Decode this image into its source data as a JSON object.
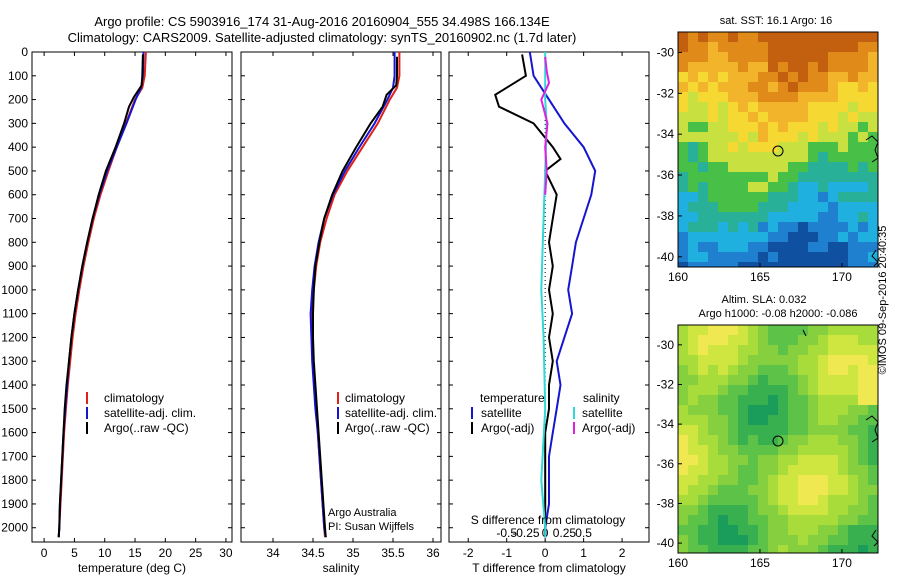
{
  "header": {
    "line1": "Argo profile: CS 5903916_174 31-Aug-2016 20160904_555 34.498S 166.134E",
    "line2": "Climatology: CARS2009. Satellite-adjusted climatology: synTS_20160902.nc (1.7d later)"
  },
  "colors": {
    "climatology": "#e0201a",
    "satellite": "#1515d0",
    "argo": "#000000",
    "sat_salinity": "#30d8d8",
    "argo_salinity": "#e020e0"
  },
  "labels": {
    "argo_australia": "Argo Australia",
    "pi": "PI: Susan Wijffels",
    "timestamp": "©IMOS 09-Sep-2016 20:40:35",
    "map_sst_title": "sat. SST: 16.1 Argo: 16",
    "map_sla_title1": "Altim. SLA: 0.032",
    "map_sla_title2": "Argo h1000: -0.08 h2000: -0.086"
  },
  "chart_data": [
    {
      "type": "line",
      "name": "temperature-profile",
      "xlabel": "temperature (deg C)",
      "ylabel": "",
      "xlim": [
        -2,
        31
      ],
      "ylim": [
        2060,
        0
      ],
      "xticks": [
        0,
        5,
        10,
        15,
        20,
        25,
        30
      ],
      "yticks": [
        0,
        100,
        200,
        300,
        400,
        500,
        600,
        700,
        800,
        900,
        1000,
        1100,
        1200,
        1300,
        1400,
        1500,
        1600,
        1700,
        1800,
        1900,
        2000
      ],
      "legend": [
        "climatology",
        "satellite-adj. clim.",
        "Argo(..raw -QC)"
      ],
      "legend_position": "lower-right",
      "series": [
        {
          "name": "climatology",
          "color_key": "climatology",
          "points": [
            [
              16.8,
              0
            ],
            [
              16.6,
              100
            ],
            [
              16.2,
              150
            ],
            [
              15.0,
              200
            ],
            [
              13.5,
              300
            ],
            [
              12.0,
              400
            ],
            [
              10.6,
              500
            ],
            [
              9.3,
              600
            ],
            [
              8.2,
              700
            ],
            [
              7.3,
              800
            ],
            [
              6.5,
              900
            ],
            [
              5.8,
              1000
            ],
            [
              5.2,
              1100
            ],
            [
              4.7,
              1200
            ],
            [
              4.3,
              1300
            ],
            [
              3.9,
              1400
            ],
            [
              3.6,
              1500
            ],
            [
              3.3,
              1600
            ],
            [
              3.1,
              1700
            ],
            [
              2.9,
              1800
            ],
            [
              2.7,
              1900
            ],
            [
              2.5,
              2000
            ],
            [
              2.4,
              2040
            ]
          ]
        },
        {
          "name": "satellite-adj. clim.",
          "color_key": "satellite",
          "points": [
            [
              16.4,
              0
            ],
            [
              16.3,
              100
            ],
            [
              16.0,
              150
            ],
            [
              15.1,
              200
            ],
            [
              13.6,
              300
            ],
            [
              12.0,
              400
            ],
            [
              10.4,
              500
            ],
            [
              9.1,
              600
            ],
            [
              8.0,
              700
            ],
            [
              7.1,
              800
            ],
            [
              6.3,
              900
            ],
            [
              5.6,
              1000
            ],
            [
              5.0,
              1100
            ],
            [
              4.5,
              1200
            ],
            [
              4.1,
              1300
            ],
            [
              3.8,
              1400
            ],
            [
              3.5,
              1500
            ],
            [
              3.2,
              1600
            ],
            [
              3.0,
              1700
            ],
            [
              2.8,
              1800
            ],
            [
              2.6,
              1900
            ],
            [
              2.5,
              2000
            ],
            [
              2.4,
              2040
            ]
          ]
        },
        {
          "name": "Argo(..raw -QC)",
          "color_key": "argo",
          "points": [
            [
              16.3,
              10
            ],
            [
              16.2,
              100
            ],
            [
              16.1,
              140
            ],
            [
              14.8,
              190
            ],
            [
              14.0,
              230
            ],
            [
              13.2,
              300
            ],
            [
              11.8,
              400
            ],
            [
              10.2,
              500
            ],
            [
              9.0,
              600
            ],
            [
              8.0,
              700
            ],
            [
              7.1,
              800
            ],
            [
              6.3,
              900
            ],
            [
              5.6,
              1000
            ],
            [
              5.0,
              1100
            ],
            [
              4.5,
              1200
            ],
            [
              4.1,
              1300
            ],
            [
              3.7,
              1400
            ],
            [
              3.4,
              1500
            ],
            [
              3.2,
              1600
            ],
            [
              3.0,
              1700
            ],
            [
              2.8,
              1800
            ],
            [
              2.6,
              1900
            ],
            [
              2.5,
              2000
            ],
            [
              2.4,
              2040
            ]
          ]
        }
      ]
    },
    {
      "type": "line",
      "name": "salinity-profile",
      "xlabel": "salinity",
      "ylabel": "",
      "xlim": [
        33.6,
        36.1
      ],
      "ylim": [
        2060,
        0
      ],
      "xticks": [
        34,
        34.5,
        35,
        35.5,
        36
      ],
      "legend": [
        "climatology",
        "satellite-adj. clim.",
        "Argo(..raw -QC)"
      ],
      "legend_position": "lower-right",
      "series": [
        {
          "name": "climatology",
          "color_key": "climatology",
          "points": [
            [
              35.58,
              0
            ],
            [
              35.58,
              100
            ],
            [
              35.55,
              150
            ],
            [
              35.46,
              200
            ],
            [
              35.31,
              300
            ],
            [
              35.12,
              400
            ],
            [
              34.93,
              500
            ],
            [
              34.77,
              600
            ],
            [
              34.67,
              700
            ],
            [
              34.59,
              800
            ],
            [
              34.54,
              900
            ],
            [
              34.51,
              1000
            ],
            [
              34.49,
              1100
            ],
            [
              34.49,
              1200
            ],
            [
              34.5,
              1300
            ],
            [
              34.52,
              1400
            ],
            [
              34.54,
              1500
            ],
            [
              34.56,
              1600
            ],
            [
              34.58,
              1700
            ],
            [
              34.6,
              1800
            ],
            [
              34.62,
              1900
            ],
            [
              34.64,
              2000
            ],
            [
              34.65,
              2040
            ]
          ]
        },
        {
          "name": "satellite-adj. clim.",
          "color_key": "satellite",
          "points": [
            [
              35.52,
              0
            ],
            [
              35.52,
              100
            ],
            [
              35.5,
              150
            ],
            [
              35.43,
              200
            ],
            [
              35.27,
              300
            ],
            [
              35.08,
              400
            ],
            [
              34.9,
              500
            ],
            [
              34.75,
              600
            ],
            [
              34.64,
              700
            ],
            [
              34.57,
              800
            ],
            [
              34.52,
              900
            ],
            [
              34.49,
              1000
            ],
            [
              34.47,
              1100
            ],
            [
              34.48,
              1200
            ],
            [
              34.49,
              1300
            ],
            [
              34.51,
              1400
            ],
            [
              34.53,
              1500
            ],
            [
              34.56,
              1600
            ],
            [
              34.58,
              1700
            ],
            [
              34.6,
              1800
            ],
            [
              34.62,
              1900
            ],
            [
              34.64,
              2000
            ],
            [
              34.66,
              2040
            ]
          ]
        },
        {
          "name": "Argo(..raw -QC)",
          "color_key": "argo",
          "points": [
            [
              35.55,
              20
            ],
            [
              35.55,
              100
            ],
            [
              35.54,
              140
            ],
            [
              35.42,
              180
            ],
            [
              35.37,
              230
            ],
            [
              35.22,
              300
            ],
            [
              35.04,
              400
            ],
            [
              34.87,
              500
            ],
            [
              34.74,
              600
            ],
            [
              34.64,
              700
            ],
            [
              34.58,
              800
            ],
            [
              34.53,
              900
            ],
            [
              34.51,
              1000
            ],
            [
              34.5,
              1100
            ],
            [
              34.5,
              1200
            ],
            [
              34.51,
              1300
            ],
            [
              34.53,
              1400
            ],
            [
              34.55,
              1500
            ],
            [
              34.57,
              1600
            ],
            [
              34.59,
              1700
            ],
            [
              34.61,
              1800
            ],
            [
              34.63,
              1900
            ],
            [
              34.65,
              2000
            ],
            [
              34.66,
              2040
            ]
          ]
        }
      ]
    },
    {
      "type": "line",
      "name": "difference-profile",
      "xlabel": "T difference from climatology",
      "xlabel_top": "S difference from climatology",
      "ylabel": "",
      "xlim": [
        -2.5,
        2.7
      ],
      "ylim": [
        2060,
        0
      ],
      "xticks": [
        -2,
        -1,
        0,
        1,
        2
      ],
      "xtick_labels": [
        "-2",
        "-1",
        "0",
        "1",
        "2"
      ],
      "s_ticks": [
        -0.5,
        -0.25,
        0,
        0.25,
        0.5
      ],
      "s_tick_labels": [
        "-0.5",
        "-0.25",
        "0",
        "0.25",
        "0.5"
      ],
      "legend_temperature_title": "temperature",
      "legend_salinity_title": "salinity",
      "legend_temperature": [
        "satellite",
        "Argo(-adj)"
      ],
      "legend_salinity": [
        "satellite",
        "Argo(-adj)"
      ],
      "series": [
        {
          "name": "temperature satellite",
          "color_key": "satellite",
          "points": [
            [
              -0.4,
              0
            ],
            [
              -0.3,
              100
            ],
            [
              -0.1,
              150
            ],
            [
              0.1,
              200
            ],
            [
              0.5,
              300
            ],
            [
              1.0,
              400
            ],
            [
              1.3,
              500
            ],
            [
              1.2,
              600
            ],
            [
              1.0,
              700
            ],
            [
              0.8,
              800
            ],
            [
              0.7,
              900
            ],
            [
              0.6,
              1000
            ],
            [
              0.7,
              1100
            ],
            [
              0.5,
              1200
            ],
            [
              0.3,
              1300
            ],
            [
              0.4,
              1400
            ],
            [
              0.3,
              1500
            ],
            [
              0.2,
              1600
            ],
            [
              0.1,
              1700
            ],
            [
              0.1,
              1800
            ],
            [
              0.1,
              1900
            ],
            [
              0.0,
              2000
            ],
            [
              0.0,
              2040
            ]
          ]
        },
        {
          "name": "temperature Argo(-adj)",
          "color_key": "argo",
          "points": [
            [
              -0.6,
              10
            ],
            [
              -0.5,
              100
            ],
            [
              -1.3,
              180
            ],
            [
              -1.2,
              230
            ],
            [
              -0.3,
              300
            ],
            [
              0.2,
              400
            ],
            [
              0.4,
              450
            ],
            [
              0.0,
              500
            ],
            [
              0.3,
              600
            ],
            [
              0.2,
              700
            ],
            [
              0.1,
              800
            ],
            [
              0.2,
              900
            ],
            [
              0.1,
              1000
            ],
            [
              0.2,
              1100
            ],
            [
              0.1,
              1200
            ],
            [
              0.2,
              1300
            ],
            [
              0.1,
              1400
            ],
            [
              0.1,
              1500
            ],
            [
              0.0,
              1600
            ],
            [
              0.0,
              1700
            ],
            [
              0.0,
              1800
            ],
            [
              0.0,
              1900
            ],
            [
              0.0,
              2000
            ],
            [
              0.0,
              2040
            ]
          ]
        },
        {
          "name": "salinity satellite",
          "color_key": "sat_salinity",
          "points": [
            [
              0.0,
              0
            ],
            [
              0.0,
              100
            ],
            [
              0.0,
              200
            ],
            [
              0.02,
              300
            ],
            [
              0.0,
              500
            ],
            [
              -0.03,
              800
            ],
            [
              -0.05,
              1000
            ],
            [
              -0.02,
              1200
            ],
            [
              0.0,
              1500
            ],
            [
              -0.05,
              1800
            ],
            [
              0.0,
              2000
            ],
            [
              0.0,
              2040
            ]
          ]
        },
        {
          "name": "salinity Argo(-adj)",
          "color_key": "argo_salinity",
          "points": [
            [
              0.0,
              20
            ],
            [
              0.02,
              80
            ],
            [
              0.05,
              130
            ],
            [
              -0.05,
              200
            ],
            [
              0.03,
              300
            ],
            [
              0.0,
              400
            ],
            [
              0.02,
              500
            ],
            [
              0.0,
              600
            ]
          ]
        }
      ]
    }
  ],
  "maps": {
    "sst": {
      "xticks": [
        "160",
        "165",
        "170"
      ],
      "yticks": [
        "-30",
        "-32",
        "-34",
        "-36",
        "-38",
        "-40"
      ]
    },
    "sla": {
      "xticks": [
        "160",
        "165",
        "170"
      ],
      "yticks": [
        "-30",
        "-32",
        "-34",
        "-36",
        "-38",
        "-40"
      ]
    }
  }
}
